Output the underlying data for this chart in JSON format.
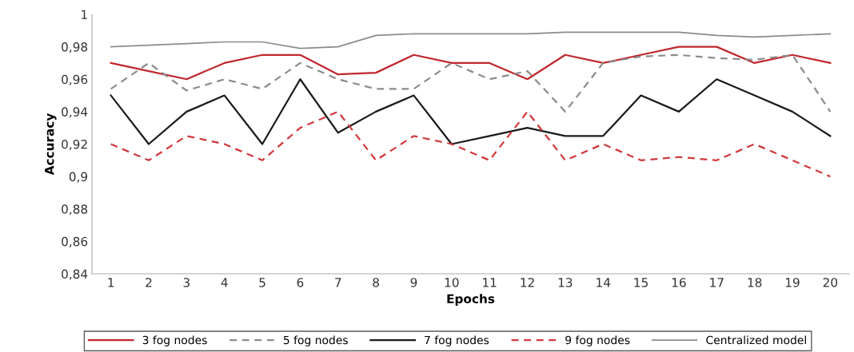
{
  "chart_data": {
    "type": "line",
    "xlabel": "Epochs",
    "ylabel": "Accuracy",
    "categories": [
      "1",
      "2",
      "3",
      "4",
      "5",
      "6",
      "7",
      "8",
      "9",
      "10",
      "11",
      "12",
      "13",
      "14",
      "15",
      "16",
      "17",
      "18",
      "19",
      "20"
    ],
    "series": [
      {
        "name": "3 fog nodes",
        "color": "#c0282d",
        "line_style": "solid",
        "values": [
          0.97,
          0.965,
          0.96,
          0.97,
          0.975,
          0.975,
          0.963,
          0.964,
          0.975,
          0.97,
          0.97,
          0.96,
          0.975,
          0.97,
          0.975,
          0.98,
          0.98,
          0.97,
          0.975,
          0.97
        ]
      },
      {
        "name": "5 fog nodes",
        "color": "#8c8c8c",
        "line_style": "dashed",
        "values": [
          0.954,
          0.97,
          0.953,
          0.96,
          0.954,
          0.97,
          0.96,
          0.954,
          0.954,
          0.97,
          0.96,
          0.965,
          0.94,
          0.97,
          0.974,
          0.975,
          0.973,
          0.972,
          0.975,
          0.94
        ]
      },
      {
        "name": "7 fog nodes",
        "color": "#1a1a1a",
        "line_style": "solid",
        "values": [
          0.95,
          0.92,
          0.94,
          0.95,
          0.92,
          0.96,
          0.927,
          0.94,
          0.95,
          0.92,
          0.925,
          0.93,
          0.925,
          0.925,
          0.95,
          0.94,
          0.96,
          0.95,
          0.94,
          0.925
        ]
      },
      {
        "name": "9 fog nodes",
        "color": "#d0393c",
        "line_style": "dashed",
        "values": [
          0.92,
          0.91,
          0.925,
          0.92,
          0.91,
          0.93,
          0.94,
          0.91,
          0.925,
          0.92,
          0.91,
          0.94,
          0.91,
          0.92,
          0.91,
          0.912,
          0.91,
          0.92,
          0.91,
          0.9
        ]
      },
      {
        "name": "Centralized model",
        "color": "#8c8c8c",
        "line_style": "solid",
        "values": [
          0.98,
          0.981,
          0.982,
          0.983,
          0.983,
          0.979,
          0.98,
          0.987,
          0.988,
          0.988,
          0.988,
          0.988,
          0.989,
          0.989,
          0.989,
          0.989,
          0.987,
          0.986,
          0.987,
          0.988
        ]
      }
    ],
    "ylim": [
      0.84,
      1
    ],
    "yticks": [
      {
        "value": 0.84,
        "label": "0,84"
      },
      {
        "value": 0.86,
        "label": "0,86"
      },
      {
        "value": 0.88,
        "label": "0,88"
      },
      {
        "value": 0.9,
        "label": "0,9"
      },
      {
        "value": 0.92,
        "label": "0,92"
      },
      {
        "value": 0.94,
        "label": "0,94"
      },
      {
        "value": 0.96,
        "label": "0,96"
      },
      {
        "value": 0.98,
        "label": "0,98"
      },
      {
        "value": 1,
        "label": "1"
      }
    ],
    "grid": false,
    "legend": "bottom",
    "marker": "none"
  }
}
